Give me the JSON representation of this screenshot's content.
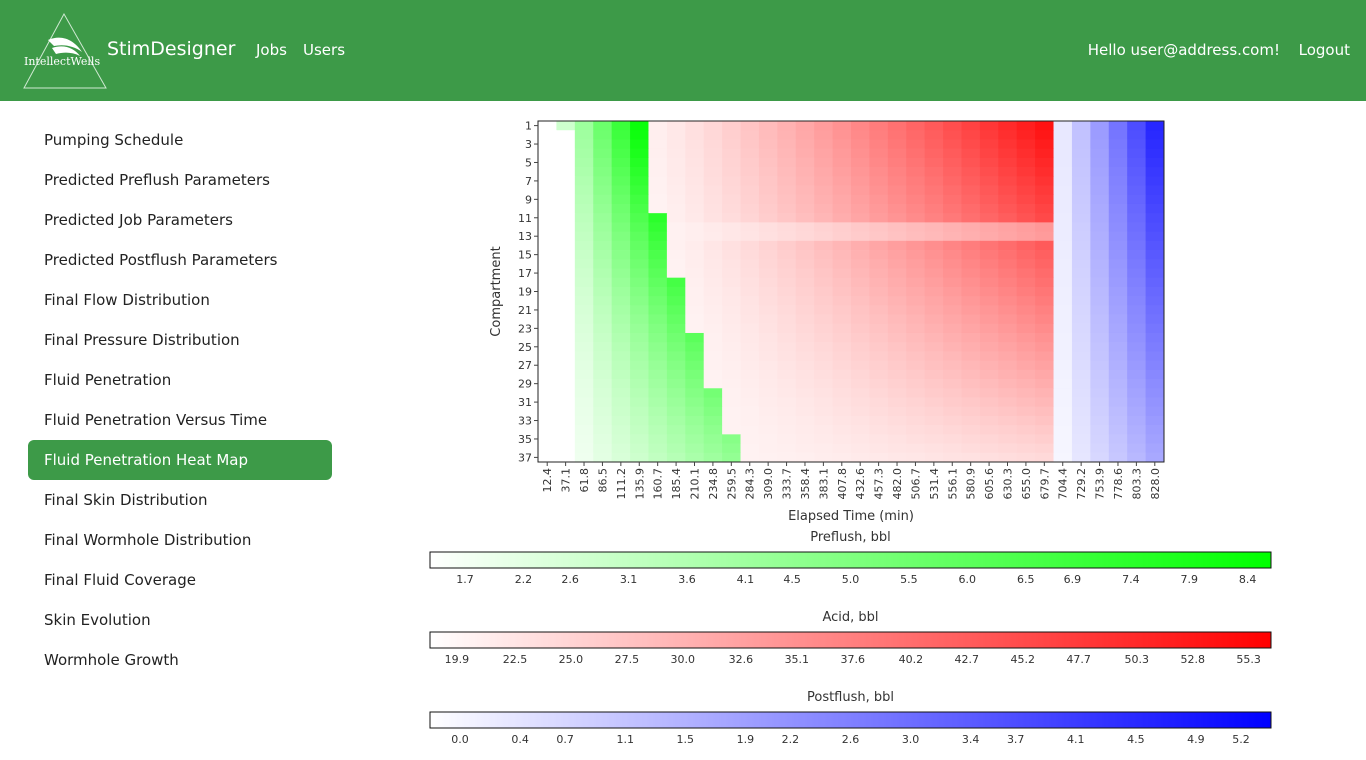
{
  "header": {
    "logo_text": "IntellectWells",
    "brand": "StimDesigner",
    "nav": [
      {
        "label": "Jobs"
      },
      {
        "label": "Users"
      }
    ],
    "greeting": "Hello user@address.com!",
    "logout_label": "Logout"
  },
  "sidebar": {
    "active_index": 8,
    "items": [
      {
        "label": "Pumping Schedule"
      },
      {
        "label": "Predicted Preflush Parameters"
      },
      {
        "label": "Predicted Job Parameters"
      },
      {
        "label": "Predicted Postflush Parameters"
      },
      {
        "label": "Final Flow Distribution"
      },
      {
        "label": "Final Pressure Distribution"
      },
      {
        "label": "Fluid Penetration"
      },
      {
        "label": "Fluid Penetration Versus Time"
      },
      {
        "label": "Fluid Penetration Heat Map"
      },
      {
        "label": "Final Skin Distribution"
      },
      {
        "label": "Final Wormhole Distribution"
      },
      {
        "label": "Final Fluid Coverage"
      },
      {
        "label": "Skin Evolution"
      },
      {
        "label": "Wormhole Growth"
      }
    ]
  },
  "chart_data": {
    "type": "heatmap",
    "xlabel": "Elapsed Time (min)",
    "ylabel": "Compartment",
    "x_ticks": [
      "12.4",
      "37.1",
      "61.8",
      "86.5",
      "111.2",
      "135.9",
      "160.7",
      "185.4",
      "210.1",
      "234.8",
      "259.5",
      "284.3",
      "309.0",
      "333.7",
      "358.4",
      "383.1",
      "407.8",
      "432.6",
      "457.3",
      "482.0",
      "506.7",
      "531.4",
      "556.1",
      "580.9",
      "605.6",
      "630.3",
      "655.0",
      "679.7",
      "704.4",
      "729.2",
      "753.9",
      "778.6",
      "803.3",
      "828.0"
    ],
    "y_ticks": [
      "1",
      "3",
      "5",
      "7",
      "9",
      "11",
      "13",
      "15",
      "17",
      "19",
      "21",
      "23",
      "25",
      "27",
      "29",
      "31",
      "33",
      "35",
      "37"
    ],
    "compartments": 37,
    "time_range": [
      0,
      828
    ],
    "fluids": [
      {
        "name": "Preflush, bbl",
        "color_low": "#ffffff",
        "color_high": "#00ff00",
        "range": [
          1.4,
          8.6
        ],
        "ticks": [
          "1.7",
          "2.2",
          "2.6",
          "3.1",
          "3.6",
          "4.1",
          "4.5",
          "5.0",
          "5.5",
          "6.0",
          "6.5",
          "6.9",
          "7.4",
          "7.9",
          "8.4"
        ]
      },
      {
        "name": "Acid, bbl",
        "color_low": "#ffffff",
        "color_high": "#ff0000",
        "range": [
          18.7,
          56.3
        ],
        "ticks": [
          "19.9",
          "22.5",
          "25.0",
          "27.5",
          "30.0",
          "32.6",
          "35.1",
          "37.6",
          "40.2",
          "42.7",
          "45.2",
          "47.7",
          "50.3",
          "52.8",
          "55.3"
        ]
      },
      {
        "name": "Postflush, bbl",
        "color_low": "#ffffff",
        "color_high": "#0000ff",
        "range": [
          -0.2,
          5.4
        ],
        "ticks": [
          "0.0",
          "0.4",
          "0.7",
          "1.1",
          "1.5",
          "1.9",
          "2.2",
          "2.6",
          "3.0",
          "3.4",
          "3.7",
          "4.1",
          "4.5",
          "4.9",
          "5.2"
        ]
      }
    ]
  }
}
